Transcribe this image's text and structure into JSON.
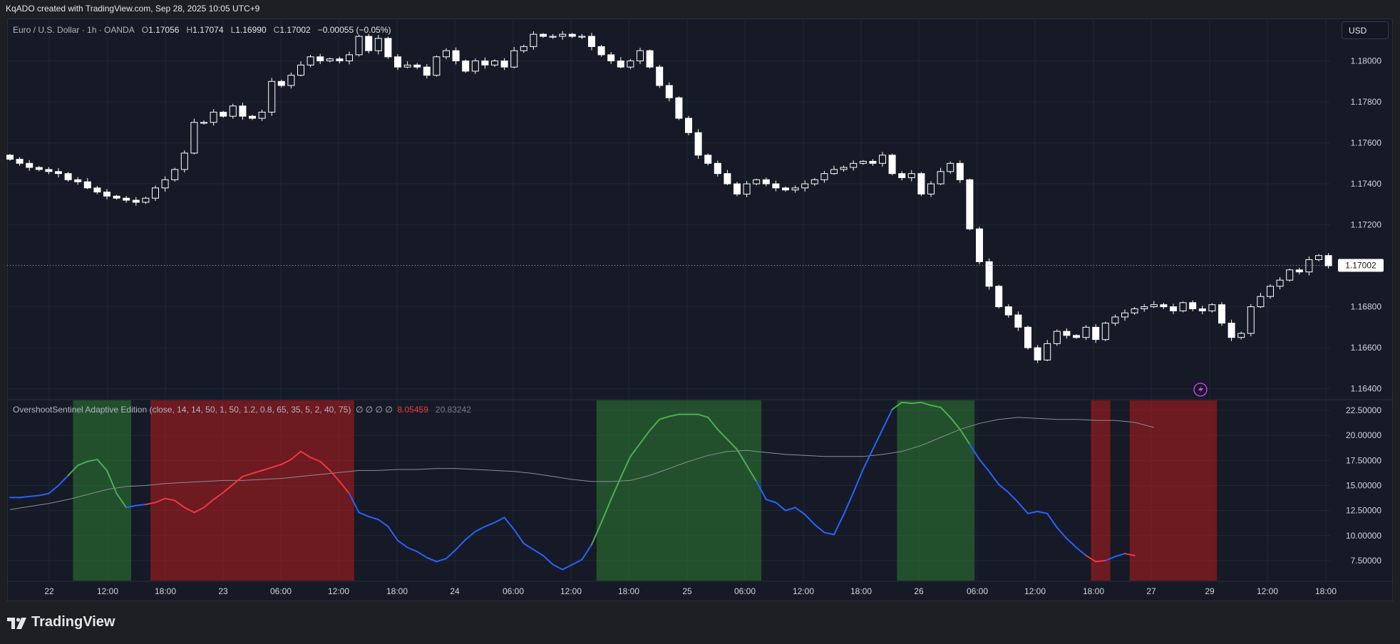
{
  "credit": "KqADO created with TradingView.com, Sep 28, 2025 10:05 UTC+9",
  "legend": {
    "symbol": "Euro / U.S. Dollar · 1h · OANDA",
    "o_label": "O",
    "o": "1.17056",
    "h_label": "H",
    "h": "1.17074",
    "l_label": "L",
    "l": "1.16990",
    "c_label": "C",
    "c": "1.17002",
    "change": "−0.00055 (−0.05%)"
  },
  "currency": "USD",
  "indicator": {
    "name": "OvershootSentinel Adaptive Edition (close, 14, 14, 50, 1, 50, 1.2, 0.8, 65, 35, 5, 2, 40, 75)",
    "empty_values": "∅ ∅ ∅ ∅",
    "value1": "8.05459",
    "value2": "20.83242"
  },
  "footer_brand": "TradingView",
  "colors": {
    "bull_zone": "#2e7d32",
    "bear_zone": "#b71c1c",
    "osc_blue": "#2962ff",
    "osc_green": "#4caf50",
    "osc_red": "#f23645",
    "baseline": "#8a8d96",
    "candle": "#ffffff"
  },
  "chart_data": [
    {
      "type": "candlestick",
      "title": "Euro / U.S. Dollar · 1h · OANDA",
      "ylim": [
        1.1635,
        1.182
      ],
      "y_ticks": [
        "1.18000",
        "1.17800",
        "1.17600",
        "1.17400",
        "1.17200",
        "1.17000",
        "1.16800",
        "1.16600",
        "1.16400"
      ],
      "last_price": "1.17002",
      "x_tick_labels": [
        "22",
        "12:00",
        "18:00",
        "23",
        "06:00",
        "12:00",
        "18:00",
        "24",
        "06:00",
        "12:00",
        "18:00",
        "25",
        "06:00",
        "12:00",
        "18:00",
        "26",
        "06:00",
        "12:00",
        "18:00",
        "27",
        "29",
        "12:00",
        "18:00"
      ],
      "close": [
        1.1752,
        1.175,
        1.1748,
        1.1747,
        1.1746,
        1.1745,
        1.1742,
        1.1741,
        1.1738,
        1.1736,
        1.1734,
        1.1733,
        1.1732,
        1.1731,
        1.1733,
        1.1738,
        1.1742,
        1.1747,
        1.1755,
        1.177,
        1.177,
        1.1775,
        1.1773,
        1.1778,
        1.1773,
        1.1772,
        1.1775,
        1.179,
        1.1788,
        1.1793,
        1.1798,
        1.1802,
        1.18,
        1.1801,
        1.18,
        1.1803,
        1.1812,
        1.1805,
        1.1811,
        1.1802,
        1.1797,
        1.1798,
        1.1797,
        1.1793,
        1.1802,
        1.1805,
        1.18,
        1.1795,
        1.18,
        1.1798,
        1.18,
        1.1797,
        1.1805,
        1.1807,
        1.1813,
        1.1812,
        1.1812,
        1.1813,
        1.1812,
        1.1812,
        1.1807,
        1.1803,
        1.18,
        1.1797,
        1.18,
        1.1805,
        1.1797,
        1.1788,
        1.1782,
        1.1772,
        1.1765,
        1.1754,
        1.175,
        1.1745,
        1.174,
        1.1735,
        1.174,
        1.1742,
        1.174,
        1.1738,
        1.1737,
        1.1738,
        1.174,
        1.1742,
        1.1745,
        1.1747,
        1.1748,
        1.175,
        1.1751,
        1.175,
        1.1754,
        1.1745,
        1.1743,
        1.1745,
        1.1735,
        1.174,
        1.1746,
        1.175,
        1.1742,
        1.1718,
        1.1702,
        1.169,
        1.168,
        1.1676,
        1.167,
        1.166,
        1.1654,
        1.1662,
        1.1668,
        1.1666,
        1.1665,
        1.167,
        1.1664,
        1.1672,
        1.1675,
        1.1677,
        1.1679,
        1.168,
        1.1681,
        1.168,
        1.1678,
        1.1682,
        1.1679,
        1.1678,
        1.1681,
        1.1672,
        1.1665,
        1.1667,
        1.168,
        1.1685,
        1.169,
        1.1693,
        1.1698,
        1.1697,
        1.1703,
        1.1705,
        1.17
      ]
    },
    {
      "type": "line",
      "title": "OvershootSentinel Adaptive Edition",
      "ylim": [
        5.5,
        23.5
      ],
      "y_ticks": [
        "22.50000",
        "20.00000",
        "17.50000",
        "15.00000",
        "12.50000",
        "10.00000",
        "7.50000"
      ],
      "series": [
        {
          "values": [
            13.8,
            13.8,
            13.9,
            14.0,
            14.2,
            15.0,
            16.0,
            17.0,
            17.4,
            17.6,
            16.5,
            14.2,
            12.8,
            13.0,
            13.1,
            13.3,
            13.7,
            13.5,
            12.8,
            12.3,
            12.8,
            13.6,
            14.3,
            15.1,
            15.9,
            16.2,
            16.5,
            16.8,
            17.1,
            17.6,
            18.4,
            17.8,
            17.4,
            16.5,
            15.4,
            14.2,
            12.3,
            11.9,
            11.6,
            10.9,
            9.5,
            8.8,
            8.4,
            7.8,
            7.4,
            7.7,
            8.6,
            9.6,
            10.4,
            10.9,
            11.3,
            11.8,
            10.6,
            9.2,
            8.6,
            8.0,
            7.1,
            6.6,
            7.1,
            7.6,
            9.1,
            11.3,
            13.6,
            15.8,
            17.9,
            19.2,
            20.5,
            21.6,
            21.9,
            22.1,
            22.1,
            22.1,
            21.8,
            20.6,
            19.6,
            18.6,
            17.0,
            15.4,
            13.6,
            13.3,
            12.5,
            12.8,
            12.1,
            11.1,
            10.3,
            10.1,
            12.1,
            14.3,
            16.6,
            18.6,
            20.6,
            22.6,
            23.3,
            23.2,
            23.3,
            23.0,
            22.8,
            21.8,
            20.6,
            19.1,
            17.6,
            16.4,
            15.1,
            14.3,
            13.3,
            12.2,
            12.4,
            12.2,
            10.8,
            9.7,
            8.8,
            8.0,
            7.4,
            7.5,
            7.9,
            8.2,
            8.0
          ]
        },
        {
          "values": [
            12.6,
            12.9,
            13.2,
            13.6,
            14.1,
            14.6,
            14.9,
            15.0,
            15.2,
            15.3,
            15.4,
            15.5,
            15.5,
            15.6,
            15.7,
            15.9,
            16.1,
            16.3,
            16.5,
            16.5,
            16.6,
            16.6,
            16.7,
            16.7,
            16.6,
            16.5,
            16.4,
            16.2,
            15.9,
            15.6,
            15.4,
            15.4,
            15.5,
            16.0,
            16.7,
            17.4,
            18.0,
            18.4,
            18.5,
            18.3,
            18.1,
            18.0,
            17.9,
            17.9,
            17.9,
            18.1,
            18.4,
            19.0,
            19.8,
            20.6,
            21.2,
            21.6,
            21.8,
            21.7,
            21.6,
            21.6,
            21.5,
            21.5,
            21.3,
            20.8
          ]
        }
      ],
      "highlight_zones": [
        {
          "type": "bull",
          "from_bar": 7,
          "to_bar": 12
        },
        {
          "type": "bear",
          "from_bar": 15,
          "to_bar": 35
        },
        {
          "type": "bull",
          "from_bar": 61,
          "to_bar": 77
        },
        {
          "type": "bull",
          "from_bar": 92,
          "to_bar": 99
        },
        {
          "type": "bear",
          "from_bar": 112,
          "to_bar": 113
        },
        {
          "type": "bear",
          "from_bar": 116,
          "to_bar": 124
        }
      ]
    }
  ]
}
